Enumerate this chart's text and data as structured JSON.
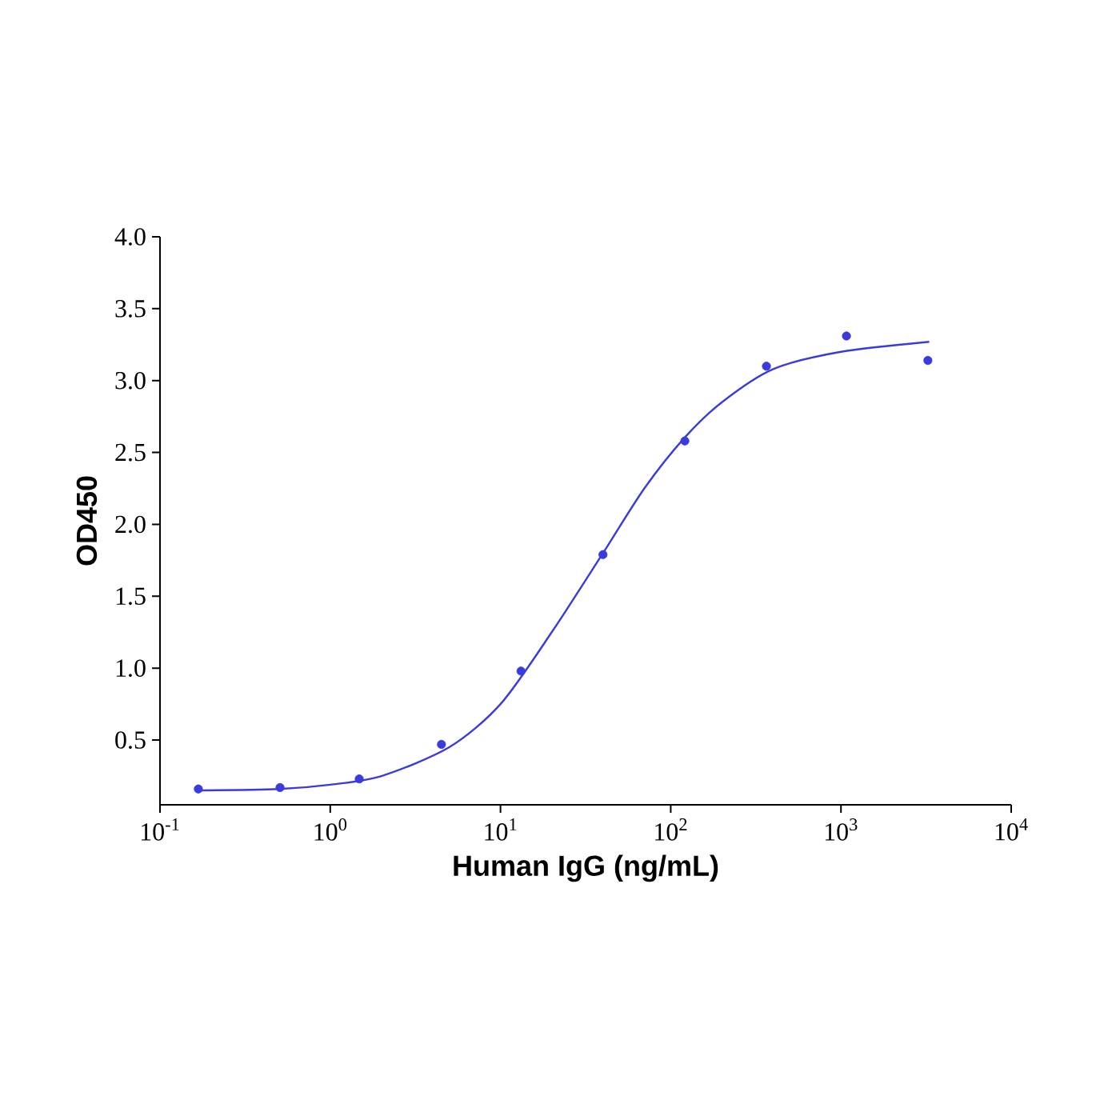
{
  "chart_data": {
    "type": "scatter",
    "xlabel": "Human IgG (ng/mL)",
    "ylabel": "OD450",
    "log": "x",
    "grid": false,
    "xlim": [
      0.1,
      10000
    ],
    "ylim": [
      0.05,
      4.0
    ],
    "xticks": [
      {
        "value": 0.1,
        "label": "10$^{-1}$"
      },
      {
        "value": 1,
        "label": "10$^{0}$"
      },
      {
        "value": 10,
        "label": "10$^{1}$"
      },
      {
        "value": 100,
        "label": "10$^{2}$"
      },
      {
        "value": 1000,
        "label": "10$^{3}$"
      },
      {
        "value": 10000,
        "label": "10$^{4}$"
      }
    ],
    "yticks": [
      0.5,
      {
        "value": 1,
        "label": "1.0"
      },
      1.5,
      {
        "value": 2,
        "label": "2.0"
      },
      2.5,
      {
        "value": 3,
        "label": "3.0"
      },
      3.5,
      {
        "value": 4,
        "label": "4.0"
      }
    ],
    "series": [
      {
        "color": "#3b3bdc",
        "marker": "circle",
        "x": [
          0.168,
          0.507,
          1.48,
          4.5,
          13.2,
          40,
          121,
          365,
          1077,
          3240
        ],
        "values": [
          0.16,
          0.17,
          0.23,
          0.47,
          0.98,
          1.79,
          2.58,
          3.1,
          3.31,
          3.14
        ]
      },
      {
        "type": "line",
        "color": "#3b3bdc",
        "marker": "none",
        "line_style": "solid",
        "x": [
          0.17,
          0.5,
          1,
          2,
          5,
          10,
          20,
          40,
          70,
          120,
          200,
          400,
          1000,
          3300
        ],
        "values": [
          0.15,
          0.16,
          0.19,
          0.25,
          0.45,
          0.75,
          1.25,
          1.8,
          2.25,
          2.6,
          2.85,
          3.08,
          3.2,
          3.27
        ]
      }
    ]
  }
}
